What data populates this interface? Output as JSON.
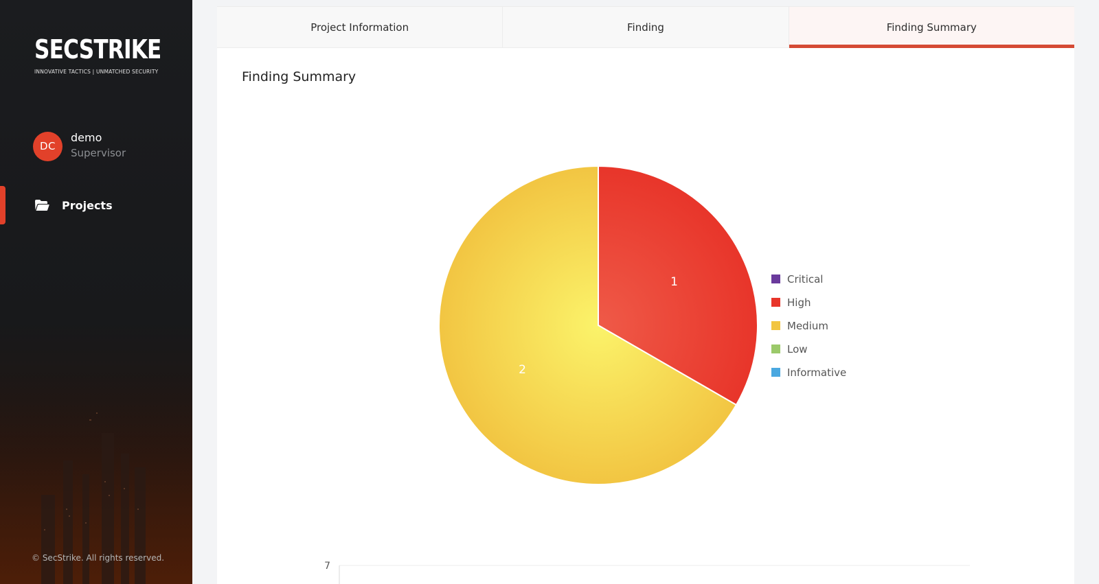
{
  "sidebar": {
    "logo": {
      "word": "SECSTRIKE",
      "tagline": "INNOVATIVE TACTICS | UNMATCHED SECURITY"
    },
    "user": {
      "initials": "DC",
      "name": "demo",
      "role": "Supervisor"
    },
    "nav": [
      {
        "label": "Projects",
        "icon": "folder-open-icon",
        "active": true
      }
    ],
    "copyright": "© SecStrike. All rights reserved."
  },
  "tabs": [
    {
      "label": "Project Information",
      "active": false
    },
    {
      "label": "Finding",
      "active": false
    },
    {
      "label": "Finding Summary",
      "active": true
    }
  ],
  "section_title": "Finding Summary",
  "colors": {
    "accent": "#e2412a",
    "critical": "#6a3a9c",
    "high": "#e8352a",
    "medium": "#f2c542",
    "low": "#9bc96a",
    "informative": "#4aa8e0"
  },
  "chart_data": [
    {
      "type": "pie",
      "categories": [
        "Critical",
        "High",
        "Medium",
        "Low",
        "Informative"
      ],
      "values": [
        0,
        1,
        2,
        0,
        0
      ],
      "data_labels": [
        "",
        "1",
        "2",
        "",
        ""
      ],
      "legend_position": "right",
      "title": ""
    },
    {
      "type": "bar",
      "ylabel": "",
      "yticks_visible": [
        "7"
      ]
    }
  ]
}
